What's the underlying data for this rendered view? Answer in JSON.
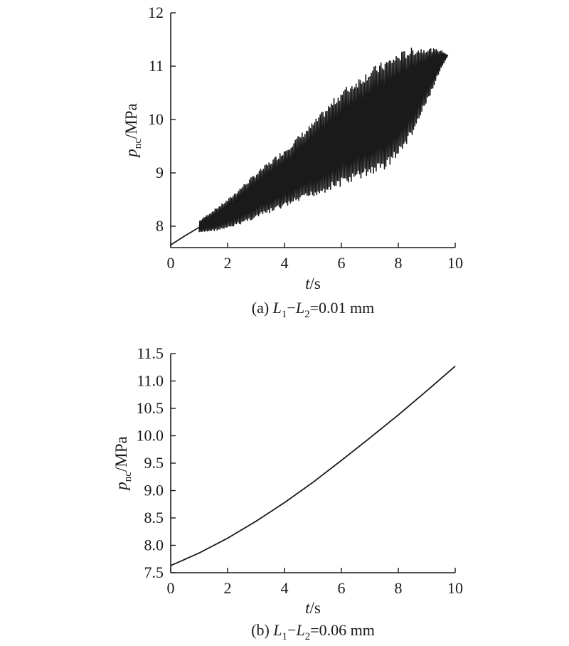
{
  "chart_data": [
    {
      "type": "line",
      "panel": "a",
      "caption": {
        "prefix": "(a) ",
        "var1": "L",
        "sub1": "1",
        "minus": "−",
        "var2": "L",
        "sub2": "2",
        "suffix": "=0.01 mm"
      },
      "xlabel": {
        "var": "t",
        "unit": "/s"
      },
      "ylabel": {
        "var": "p",
        "sub": "nc",
        "unit": "/MPa"
      },
      "xlim": [
        0,
        10
      ],
      "ylim": [
        7.6,
        12
      ],
      "xticks": [
        "0",
        "2",
        "4",
        "6",
        "8",
        "10"
      ],
      "yticks": [
        "8",
        "9",
        "10",
        "11",
        "12"
      ],
      "xtick_values": [
        0,
        2,
        4,
        6,
        8,
        10
      ],
      "ytick_values": [
        8,
        9,
        10,
        11,
        12
      ],
      "initial_segment": {
        "x": [
          0,
          0.5,
          1.0
        ],
        "y": [
          7.65,
          7.82,
          7.98
        ]
      },
      "oscillation": {
        "t_start": 1.0,
        "t_end": 9.75,
        "upper_envelope": {
          "x": [
            1.0,
            2,
            3,
            4,
            5,
            6,
            7,
            8,
            8.5,
            9,
            9.5,
            9.75
          ],
          "y": [
            8.1,
            8.5,
            9.0,
            9.45,
            9.95,
            10.55,
            10.95,
            11.25,
            11.35,
            11.35,
            11.3,
            11.2
          ]
        },
        "lower_envelope": {
          "x": [
            1.0,
            2,
            3,
            4,
            5,
            6,
            7,
            7.5,
            8,
            8.5,
            9,
            9.5,
            9.75
          ],
          "y": [
            7.88,
            7.95,
            8.15,
            8.35,
            8.55,
            8.75,
            8.95,
            9.05,
            9.3,
            9.7,
            10.3,
            10.95,
            11.2
          ]
        },
        "approx_cycles": 180
      }
    },
    {
      "type": "line",
      "panel": "b",
      "caption": {
        "prefix": "(b) ",
        "var1": "L",
        "sub1": "1",
        "minus": "−",
        "var2": "L",
        "sub2": "2",
        "suffix": "=0.06 mm"
      },
      "xlabel": {
        "var": "t",
        "unit": "/s"
      },
      "ylabel": {
        "var": "p",
        "sub": "nc",
        "unit": "/MPa"
      },
      "xlim": [
        0,
        10
      ],
      "ylim": [
        7.5,
        11.5
      ],
      "xticks": [
        "0",
        "2",
        "4",
        "6",
        "8",
        "10"
      ],
      "yticks": [
        "7.5",
        "8.0",
        "8.5",
        "9.0",
        "9.5",
        "10.0",
        "10.5",
        "11.0",
        "11.5"
      ],
      "xtick_values": [
        0,
        2,
        4,
        6,
        8,
        10
      ],
      "ytick_values": [
        7.5,
        8.0,
        8.5,
        9.0,
        9.5,
        10.0,
        10.5,
        11.0,
        11.5
      ],
      "series": [
        {
          "x": [
            0,
            1,
            2,
            3,
            4,
            5,
            6,
            7,
            8,
            9,
            10
          ],
          "y": [
            7.63,
            7.86,
            8.13,
            8.44,
            8.78,
            9.15,
            9.55,
            9.96,
            10.38,
            10.82,
            11.27
          ]
        }
      ]
    }
  ]
}
